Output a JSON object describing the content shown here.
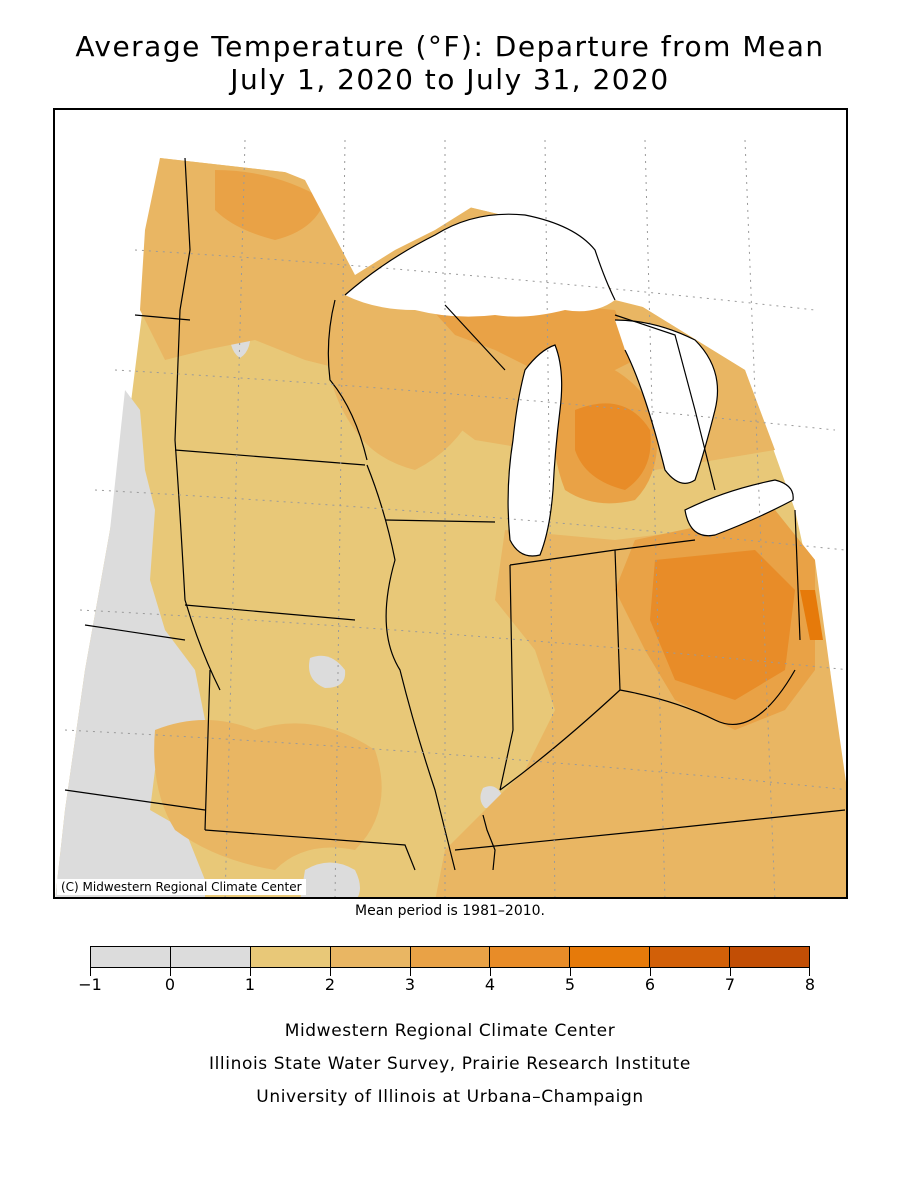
{
  "title": {
    "line1": "Average Temperature (°F): Departure from Mean",
    "line2": "July 1, 2020 to July 31, 2020"
  },
  "map": {
    "credit": "(C) Midwestern Regional Climate Center",
    "mean_note": "Mean period is 1981–2010."
  },
  "legend": {
    "labels": [
      "−1",
      "0",
      "1",
      "2",
      "3",
      "4",
      "5",
      "6",
      "7",
      "8"
    ],
    "colors": [
      "#dcdcdc",
      "#dcdcdc",
      "#e8c878",
      "#e9b663",
      "#e9a246",
      "#e88c28",
      "#e67a0a",
      "#d26008",
      "#c24e05"
    ]
  },
  "colors": {
    "gray": "#dcdcdc",
    "level1": "#e8c878",
    "level2": "#e9b663",
    "level3": "#e9a246",
    "level4": "#e88c28",
    "level5": "#e67a0a",
    "water": "#ffffff",
    "border": "#000000"
  },
  "footer": {
    "line1": "Midwestern Regional Climate Center",
    "line2": "Illinois State Water Survey, Prairie Research Institute",
    "line3": "University of Illinois at Urbana–Champaign"
  }
}
